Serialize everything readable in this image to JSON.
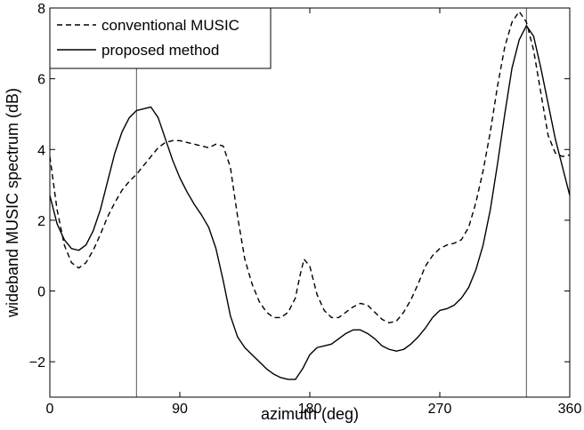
{
  "chart_data": {
    "type": "line",
    "title": "",
    "xlabel": "azimuth (deg)",
    "ylabel": "wideband MUSIC spectrum (dB)",
    "xlim": [
      0,
      360
    ],
    "ylim": [
      -3,
      8
    ],
    "xticks": [
      0,
      90,
      180,
      270,
      360
    ],
    "yticks": [
      -2,
      0,
      2,
      4,
      6,
      8
    ],
    "xtick_labels": [
      "0",
      "90",
      "180",
      "270",
      "360"
    ],
    "ytick_labels": [
      "−2",
      "0",
      "2",
      "4",
      "6",
      "8"
    ],
    "grid": false,
    "legend_position": "top-left",
    "reference_lines_x": [
      60,
      330
    ],
    "series": [
      {
        "name": "conventional MUSIC",
        "style": "dashed",
        "color": "#000000",
        "x": [
          0,
          5,
          10,
          15,
          20,
          25,
          30,
          35,
          40,
          45,
          50,
          55,
          60,
          65,
          70,
          75,
          80,
          85,
          90,
          95,
          100,
          105,
          110,
          115,
          120,
          125,
          130,
          135,
          140,
          145,
          150,
          155,
          160,
          165,
          170,
          173,
          176,
          180,
          185,
          190,
          195,
          200,
          205,
          210,
          215,
          220,
          225,
          230,
          235,
          240,
          245,
          250,
          255,
          260,
          265,
          270,
          275,
          280,
          285,
          290,
          295,
          300,
          305,
          310,
          315,
          320,
          325,
          330,
          335,
          340,
          345,
          350,
          355,
          360
        ],
        "y": [
          3.8,
          2.3,
          1.3,
          0.8,
          0.65,
          0.8,
          1.15,
          1.6,
          2.1,
          2.5,
          2.85,
          3.1,
          3.3,
          3.55,
          3.8,
          4.05,
          4.2,
          4.25,
          4.25,
          4.2,
          4.15,
          4.1,
          4.05,
          4.15,
          4.1,
          3.5,
          2.1,
          0.9,
          0.2,
          -0.3,
          -0.6,
          -0.75,
          -0.75,
          -0.6,
          -0.2,
          0.4,
          0.9,
          0.7,
          -0.1,
          -0.55,
          -0.75,
          -0.75,
          -0.6,
          -0.45,
          -0.35,
          -0.4,
          -0.6,
          -0.8,
          -0.9,
          -0.85,
          -0.6,
          -0.25,
          0.2,
          0.7,
          1.0,
          1.2,
          1.3,
          1.35,
          1.45,
          1.8,
          2.5,
          3.4,
          4.5,
          5.8,
          6.9,
          7.6,
          7.9,
          7.6,
          6.8,
          5.6,
          4.4,
          3.9,
          3.8,
          3.85
        ]
      },
      {
        "name": "proposed method",
        "style": "solid",
        "color": "#000000",
        "x": [
          0,
          5,
          10,
          15,
          20,
          25,
          30,
          35,
          40,
          45,
          50,
          55,
          60,
          65,
          70,
          75,
          80,
          85,
          90,
          95,
          100,
          105,
          110,
          115,
          120,
          125,
          130,
          135,
          140,
          145,
          150,
          155,
          160,
          165,
          170,
          175,
          180,
          185,
          190,
          195,
          200,
          205,
          210,
          215,
          220,
          225,
          230,
          235,
          240,
          245,
          250,
          255,
          260,
          265,
          270,
          275,
          280,
          285,
          290,
          295,
          300,
          305,
          310,
          315,
          320,
          325,
          330,
          335,
          340,
          345,
          350,
          355,
          360
        ],
        "y": [
          2.7,
          1.9,
          1.45,
          1.2,
          1.15,
          1.3,
          1.7,
          2.3,
          3.1,
          3.9,
          4.5,
          4.9,
          5.1,
          5.15,
          5.2,
          4.9,
          4.3,
          3.7,
          3.2,
          2.8,
          2.45,
          2.15,
          1.8,
          1.2,
          0.3,
          -0.7,
          -1.3,
          -1.6,
          -1.8,
          -2.0,
          -2.2,
          -2.35,
          -2.45,
          -2.5,
          -2.5,
          -2.2,
          -1.8,
          -1.6,
          -1.55,
          -1.5,
          -1.35,
          -1.2,
          -1.1,
          -1.1,
          -1.2,
          -1.35,
          -1.55,
          -1.65,
          -1.7,
          -1.65,
          -1.5,
          -1.3,
          -1.05,
          -0.75,
          -0.55,
          -0.5,
          -0.4,
          -0.2,
          0.1,
          0.6,
          1.3,
          2.3,
          3.6,
          5.0,
          6.3,
          7.1,
          7.5,
          7.2,
          6.3,
          5.3,
          4.3,
          3.5,
          2.7
        ]
      }
    ]
  }
}
